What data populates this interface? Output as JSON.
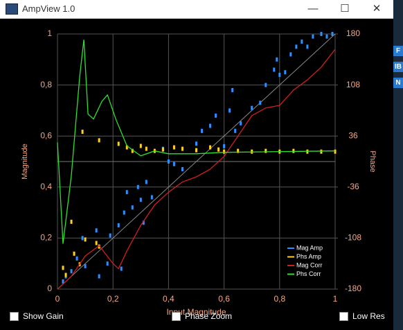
{
  "window": {
    "title": "AmpView 1.0"
  },
  "background_fragments": [
    "F",
    "IB",
    "N"
  ],
  "controls": [
    {
      "label": "Show Gain"
    },
    {
      "label": "Phase Zoom"
    },
    {
      "label": "Low Res"
    }
  ],
  "chart_data": {
    "type": "scatter",
    "x_label": "Input Magnitude",
    "y_label": "Magnitude",
    "y2_label": "Phase",
    "xlim": [
      0,
      1
    ],
    "ylim": [
      0,
      1
    ],
    "y2lim": [
      -180,
      180
    ],
    "xticks": [
      0,
      {
        "value": 0.2,
        "label": "0,2"
      },
      {
        "value": 0.4,
        "label": "0,4"
      },
      {
        "value": 0.6,
        "label": "0,6"
      },
      {
        "value": 0.8,
        "label": "0,8"
      },
      1
    ],
    "yticks": [
      0,
      {
        "value": 0.2,
        "label": "0,2"
      },
      {
        "value": 0.4,
        "label": "0,4"
      },
      {
        "value": 0.6,
        "label": "0,6"
      },
      {
        "value": 0.8,
        "label": "0,8"
      },
      1
    ],
    "y2ticks": [
      -180,
      -108,
      -36,
      36,
      108,
      180
    ],
    "grid": true,
    "legend": "lower right",
    "series": [
      {
        "name": "Mag Amp",
        "color": "#2f8fff",
        "type": "scatter",
        "x": [
          0.02,
          0.03,
          0.05,
          0.07,
          0.09,
          0.1,
          0.14,
          0.15,
          0.18,
          0.19,
          0.22,
          0.23,
          0.24,
          0.25,
          0.27,
          0.29,
          0.3,
          0.31,
          0.32,
          0.34,
          0.38,
          0.4,
          0.42,
          0.45,
          0.5,
          0.52,
          0.55,
          0.57,
          0.6,
          0.62,
          0.63,
          0.64,
          0.66,
          0.7,
          0.73,
          0.75,
          0.78,
          0.79,
          0.8,
          0.82,
          0.84,
          0.86,
          0.88,
          0.9,
          0.92,
          0.95,
          0.97,
          0.99
        ],
        "values": [
          0.03,
          0.05,
          0.07,
          0.12,
          0.2,
          0.09,
          0.23,
          0.05,
          0.1,
          0.21,
          0.25,
          0.08,
          0.3,
          0.38,
          0.32,
          0.4,
          0.35,
          0.26,
          0.42,
          0.36,
          0.55,
          0.5,
          0.49,
          0.47,
          0.57,
          0.62,
          0.64,
          0.68,
          0.56,
          0.7,
          0.78,
          0.62,
          0.65,
          0.71,
          0.73,
          0.8,
          0.86,
          0.9,
          0.84,
          0.85,
          0.92,
          0.95,
          0.97,
          0.95,
          0.99,
          1,
          0.99,
          1
        ]
      },
      {
        "name": "Phs Amp",
        "color": "#ffd020",
        "type": "scatter",
        "axis": "y2",
        "x": [
          0.02,
          0.03,
          0.05,
          0.06,
          0.08,
          0.1,
          0.14,
          0.15,
          0.09,
          0.15,
          0.22,
          0.25,
          0.27,
          0.3,
          0.32,
          0.35,
          0.38,
          0.42,
          0.45,
          0.5,
          0.55,
          0.58,
          0.6,
          0.65,
          0.7,
          0.75,
          0.8,
          0.85,
          0.9,
          0.95,
          1
        ],
        "values": [
          -150,
          -160,
          -85,
          -130,
          -145,
          -110,
          -115,
          -120,
          42,
          30,
          25,
          20,
          15,
          22,
          18,
          15,
          17,
          20,
          18,
          16,
          20,
          17,
          14,
          15,
          14,
          15,
          14,
          15,
          14,
          14,
          14
        ]
      },
      {
        "name": "Mag Corr",
        "color": "#d02020",
        "type": "line",
        "x": [
          0,
          0.05,
          0.1,
          0.15,
          0.2,
          0.22,
          0.25,
          0.3,
          0.35,
          0.4,
          0.45,
          0.5,
          0.55,
          0.6,
          0.65,
          0.7,
          0.75,
          0.8,
          0.85,
          0.9,
          0.95,
          1
        ],
        "values": [
          0,
          0.05,
          0.13,
          0.17,
          0.1,
          0.08,
          0.15,
          0.25,
          0.33,
          0.38,
          0.42,
          0.44,
          0.47,
          0.52,
          0.6,
          0.68,
          0.71,
          0.72,
          0.78,
          0.82,
          0.87,
          0.94
        ]
      },
      {
        "name": "Phs Corr",
        "color": "#30e030",
        "type": "line",
        "axis": "y2",
        "x": [
          0,
          0.02,
          0.05,
          0.08,
          0.095,
          0.11,
          0.13,
          0.16,
          0.18,
          0.21,
          0.25,
          0.3,
          0.35,
          0.4,
          0.5,
          0.6,
          0.8,
          1
        ],
        "values": [
          27,
          -116,
          -20,
          120,
          172,
          67,
          60,
          85,
          94,
          60,
          22,
          8,
          15,
          11,
          11,
          13,
          14,
          15
        ]
      }
    ]
  }
}
